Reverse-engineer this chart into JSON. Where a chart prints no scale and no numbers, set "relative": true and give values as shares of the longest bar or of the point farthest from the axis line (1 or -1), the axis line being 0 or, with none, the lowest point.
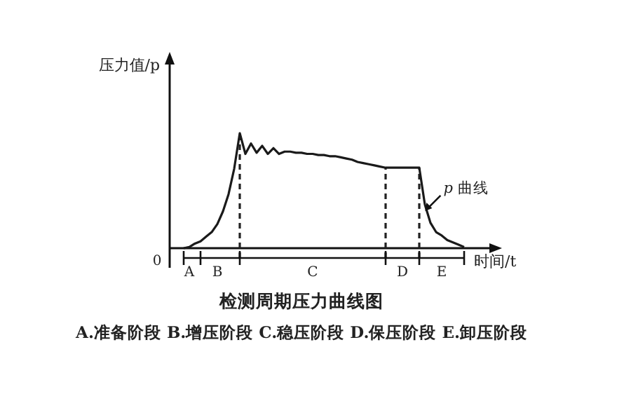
{
  "chart_data": {
    "type": "line",
    "title": "检测周期压力曲线图",
    "xlabel": "时间/t",
    "ylabel": "压力值/p",
    "relative": true,
    "marker": "none",
    "line_style": "solid",
    "categories": [
      null,
      "A",
      null,
      null,
      null,
      null,
      "B",
      null,
      null,
      null,
      null,
      null,
      null,
      null,
      null,
      null,
      null,
      null,
      null,
      null,
      null,
      null,
      null,
      "C",
      null,
      null,
      null,
      null,
      null,
      null,
      null,
      null,
      null,
      null,
      null,
      null,
      null,
      null,
      null,
      "D",
      null,
      null,
      null,
      null,
      null,
      null,
      "E",
      null,
      null,
      null,
      null
    ],
    "series": [
      {
        "color": "#1a1a1a",
        "values": [
          0,
          0.01,
          0.04,
          0.06,
          0.1,
          0.14,
          0.21,
          0.32,
          0.47,
          0.69,
          1.0,
          0.82,
          0.91,
          0.83,
          0.89,
          0.82,
          0.87,
          0.82,
          0.84,
          0.84,
          0.83,
          0.83,
          0.82,
          0.82,
          0.81,
          0.81,
          0.8,
          0.8,
          0.79,
          0.78,
          0.77,
          0.75,
          0.74,
          0.73,
          0.72,
          0.71,
          0.7,
          0.7,
          0.7,
          0.7,
          0.7,
          0.7,
          0.7,
          0.38,
          0.22,
          0.14,
          0.11,
          0.07,
          0.05,
          0.03,
          0.01
        ]
      }
    ],
    "annotations": [
      "0",
      "p 曲线",
      "A.准备阶段  B.增压阶段  C.稳压阶段  D.保压阶段  E.卸压阶段"
    ]
  }
}
